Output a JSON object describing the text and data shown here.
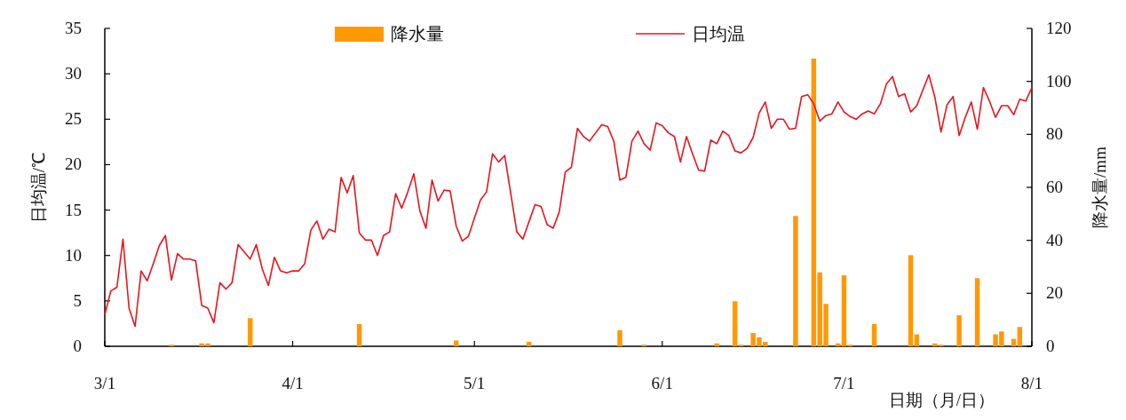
{
  "chart_data": {
    "type": "line",
    "xlabel": "日期（月/日）",
    "ylabel": "日均温/℃",
    "y2label": "降水量/mm",
    "xlim": [
      "--03-01",
      "--08-01"
    ],
    "xticks": [
      {
        "value": "--03-01",
        "label": "3/1"
      },
      {
        "value": "--04-01",
        "label": "4/1"
      },
      {
        "value": "--05-01",
        "label": "5/1"
      },
      {
        "value": "--06-01",
        "label": "6/1"
      },
      {
        "value": "--07-01",
        "label": "7/1"
      },
      {
        "value": "--08-01",
        "label": "8/1"
      }
    ],
    "ylim": [
      0,
      35
    ],
    "yticks": [
      0,
      5,
      10,
      15,
      20,
      25,
      30,
      35
    ],
    "y2lim": [
      0,
      120
    ],
    "y2ticks": [
      0,
      20,
      40,
      60,
      80,
      100,
      120
    ],
    "legend": "top",
    "series": [
      {
        "name": "降水量",
        "type": "bar",
        "axis": "y2",
        "color": "#ff9900",
        "x": [
          "--03-12",
          "--03-17",
          "--03-18",
          "--03-25",
          "--04-12",
          "--04-28",
          "--05-10",
          "--05-25",
          "--05-29",
          "--06-10",
          "--06-13",
          "--06-14",
          "--06-16",
          "--06-17",
          "--06-18",
          "--06-23",
          "--06-26",
          "--06-27",
          "--06-28",
          "--06-30",
          "--07-01",
          "--07-02",
          "--07-06",
          "--07-12",
          "--07-13",
          "--07-16",
          "--07-17",
          "--07-20",
          "--07-23",
          "--07-26",
          "--07-27",
          "--07-29",
          "--07-30"
        ],
        "values": [
          0.6,
          1.1,
          1.1,
          10.6,
          8.4,
          2.2,
          1.7,
          6.1,
          0.6,
          1.1,
          17.0,
          0.6,
          5.0,
          3.4,
          1.7,
          49.2,
          108.6,
          27.9,
          16.0,
          1.1,
          26.8,
          0.6,
          8.4,
          34.4,
          4.5,
          1.1,
          0.6,
          11.7,
          25.7,
          4.5,
          5.6,
          2.8,
          7.3
        ]
      },
      {
        "name": "日均温",
        "type": "line",
        "color": "#e8141c",
        "x": [
          "--03-01",
          "--03-02",
          "--03-03",
          "--03-04",
          "--03-05",
          "--03-06",
          "--03-07",
          "--03-08",
          "--03-09",
          "--03-10",
          "--03-11",
          "--03-12",
          "--03-13",
          "--03-14",
          "--03-15",
          "--03-16",
          "--03-17",
          "--03-18",
          "--03-19",
          "--03-20",
          "--03-21",
          "--03-22",
          "--03-23",
          "--03-25",
          "--03-26",
          "--03-27",
          "--03-28",
          "--03-29",
          "--03-30",
          "--03-31",
          "--04-01",
          "--04-02",
          "--04-03",
          "--04-04",
          "--04-05",
          "--04-06",
          "--04-07",
          "--04-08",
          "--04-09",
          "--04-10",
          "--04-11",
          "--04-12",
          "--04-13",
          "--04-14",
          "--04-15",
          "--04-16",
          "--04-17",
          "--04-18",
          "--04-19",
          "--04-20",
          "--04-21",
          "--04-22",
          "--04-23",
          "--04-24",
          "--04-25",
          "--04-26",
          "--04-27",
          "--04-28",
          "--04-29",
          "--04-30",
          "--05-01",
          "--05-02",
          "--05-03",
          "--05-04",
          "--05-05",
          "--05-06",
          "--05-08",
          "--05-09",
          "--05-10",
          "--05-11",
          "--05-12",
          "--05-13",
          "--05-14",
          "--05-15",
          "--05-16",
          "--05-17",
          "--05-18",
          "--05-19",
          "--05-20",
          "--05-21",
          "--05-22",
          "--05-23",
          "--05-24",
          "--05-25",
          "--05-26",
          "--05-27",
          "--05-28",
          "--05-29",
          "--05-30",
          "--05-31",
          "--06-01",
          "--06-02",
          "--06-03",
          "--06-04",
          "--06-05",
          "--06-06",
          "--06-07",
          "--06-08",
          "--06-09",
          "--06-10",
          "--06-11",
          "--06-12",
          "--06-13",
          "--06-14",
          "--06-15",
          "--06-16",
          "--06-17",
          "--06-18",
          "--06-19",
          "--06-20",
          "--06-21",
          "--06-22",
          "--06-23",
          "--06-24",
          "--06-25",
          "--06-26",
          "--06-27",
          "--06-28",
          "--06-29",
          "--06-30",
          "--07-01",
          "--07-02",
          "--07-03",
          "--07-04",
          "--07-05",
          "--07-06",
          "--07-07",
          "--07-08",
          "--07-09",
          "--07-10",
          "--07-11",
          "--07-12",
          "--07-13",
          "--07-14",
          "--07-15",
          "--07-16",
          "--07-17",
          "--07-18",
          "--07-19",
          "--07-20",
          "--07-21",
          "--07-22",
          "--07-23",
          "--07-24",
          "--07-25",
          "--07-26",
          "--07-27",
          "--07-28",
          "--07-29",
          "--07-30",
          "--07-31",
          "--08-01"
        ],
        "values": [
          3.5,
          6.1,
          6.5,
          11.8,
          4.2,
          2.2,
          8.3,
          7.2,
          9.1,
          11.1,
          12.2,
          7.3,
          10.2,
          9.6,
          9.6,
          9.4,
          4.5,
          4.2,
          2.6,
          7.0,
          6.3,
          7.0,
          11.2,
          9.6,
          11.2,
          8.5,
          6.7,
          9.8,
          8.3,
          8.1,
          8.3,
          8.3,
          9.1,
          12.8,
          13.8,
          11.8,
          12.9,
          12.6,
          18.6,
          16.9,
          18.8,
          12.5,
          11.7,
          11.7,
          10.0,
          12.2,
          12.6,
          16.8,
          15.2,
          17.0,
          19.0,
          14.9,
          13.0,
          18.3,
          16.0,
          17.2,
          17.1,
          13.2,
          11.6,
          12.1,
          14.1,
          16.1,
          17.0,
          21.2,
          20.3,
          21.0,
          12.6,
          11.8,
          13.7,
          15.6,
          15.4,
          13.4,
          13.0,
          14.8,
          19.2,
          19.7,
          24.0,
          23.1,
          22.6,
          23.5,
          24.4,
          24.2,
          22.6,
          18.3,
          18.6,
          22.6,
          23.7,
          22.3,
          21.6,
          24.6,
          24.3,
          23.5,
          23.1,
          20.3,
          23.1,
          21.2,
          19.4,
          19.3,
          22.7,
          22.3,
          23.7,
          23.2,
          21.5,
          21.3,
          21.8,
          23.0,
          25.7,
          26.9,
          24.0,
          25.0,
          25.0,
          23.9,
          24.0,
          27.5,
          27.7,
          26.7,
          24.8,
          25.4,
          25.6,
          26.9,
          25.8,
          25.3,
          25.0,
          25.6,
          25.9,
          25.6,
          26.7,
          28.9,
          29.7,
          27.5,
          27.8,
          25.8,
          26.5,
          28.2,
          29.9,
          27.4,
          23.6,
          26.6,
          27.5,
          23.2,
          25.2,
          26.9,
          23.9,
          28.5,
          27.0,
          25.2,
          26.5,
          26.5,
          25.5,
          27.2,
          27.0,
          28.5
        ]
      }
    ]
  }
}
